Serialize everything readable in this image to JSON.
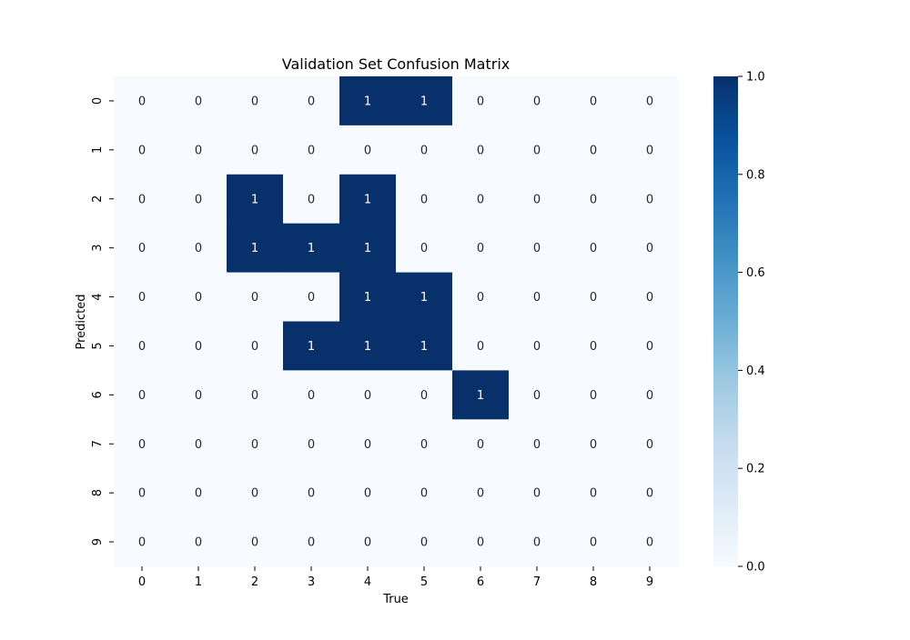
{
  "chart_data": {
    "type": "heatmap",
    "title": "Validation Set Confusion Matrix",
    "xlabel": "True",
    "ylabel": "Predicted",
    "x_categories": [
      "0",
      "1",
      "2",
      "3",
      "4",
      "5",
      "6",
      "7",
      "8",
      "9"
    ],
    "y_categories": [
      "0",
      "1",
      "2",
      "3",
      "4",
      "5",
      "6",
      "7",
      "8",
      "9"
    ],
    "values": [
      [
        0,
        0,
        0,
        0,
        1,
        1,
        0,
        0,
        0,
        0
      ],
      [
        0,
        0,
        0,
        0,
        0,
        0,
        0,
        0,
        0,
        0
      ],
      [
        0,
        0,
        1,
        0,
        1,
        0,
        0,
        0,
        0,
        0
      ],
      [
        0,
        0,
        1,
        1,
        1,
        0,
        0,
        0,
        0,
        0
      ],
      [
        0,
        0,
        0,
        0,
        1,
        1,
        0,
        0,
        0,
        0
      ],
      [
        0,
        0,
        0,
        1,
        1,
        1,
        0,
        0,
        0,
        0
      ],
      [
        0,
        0,
        0,
        0,
        0,
        0,
        1,
        0,
        0,
        0
      ],
      [
        0,
        0,
        0,
        0,
        0,
        0,
        0,
        0,
        0,
        0
      ],
      [
        0,
        0,
        0,
        0,
        0,
        0,
        0,
        0,
        0,
        0
      ],
      [
        0,
        0,
        0,
        0,
        0,
        0,
        0,
        0,
        0,
        0
      ]
    ],
    "colorbar": {
      "range": [
        0.0,
        1.0
      ],
      "ticks": [
        "0.0",
        "0.2",
        "0.4",
        "0.6",
        "0.8",
        "1.0"
      ],
      "cmap": "Blues",
      "low_color": "#f7fbff",
      "high_color": "#08306b"
    },
    "annotations": true,
    "grid": false
  }
}
